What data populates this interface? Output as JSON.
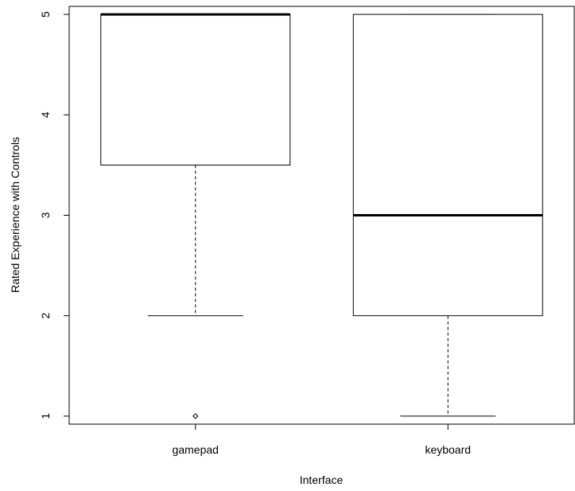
{
  "chart_data": {
    "type": "boxplot",
    "title": "",
    "xlabel": "Interface",
    "ylabel": "Rated Experience with Controls",
    "ylim": [
      0.92,
      5.08
    ],
    "yticks": [
      "1",
      "2",
      "3",
      "4",
      "5"
    ],
    "categories": [
      "gamepad",
      "keyboard"
    ],
    "boxes": [
      {
        "name": "gamepad",
        "whisker_low": 2,
        "q1": 3.5,
        "median": 5,
        "q3": 5,
        "whisker_high": 5,
        "outliers": [
          1
        ]
      },
      {
        "name": "keyboard",
        "whisker_low": 1,
        "q1": 2,
        "median": 3,
        "q3": 5,
        "whisker_high": 5,
        "outliers": []
      }
    ],
    "grid": false,
    "legend": "none"
  }
}
